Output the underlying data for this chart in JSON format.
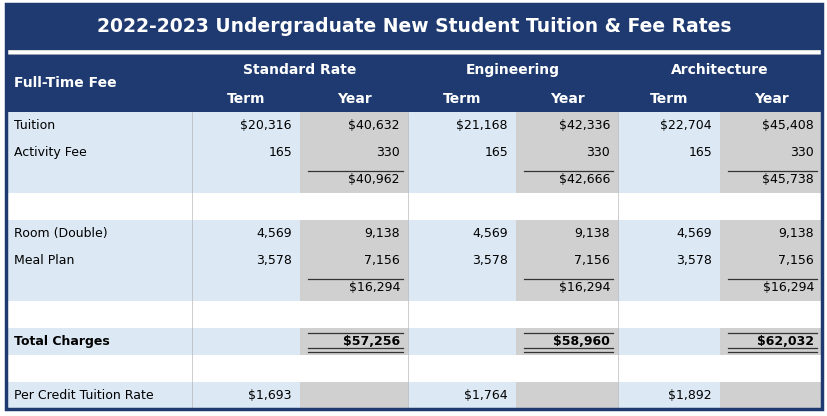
{
  "title": "2022-2023 Undergraduate New Student Tuition & Fee Rates",
  "title_bg": "#1e3a70",
  "title_color": "#ffffff",
  "header_bg": "#1e3a70",
  "header_color": "#ffffff",
  "light_blue": "#dce9f5",
  "gray_col": "#d0d0d0",
  "label_blue": "#dce9f5",
  "white_bg": "#ffffff",
  "outer_border": "#1e3a70",
  "rows": [
    {
      "label": "Tuition",
      "vals": [
        "$20,316",
        "$40,632",
        "$21,168",
        "$42,336",
        "$22,704",
        "$45,408"
      ],
      "bg": "data",
      "bold": false
    },
    {
      "label": "Activity Fee",
      "vals": [
        "165",
        "330",
        "165",
        "330",
        "165",
        "330"
      ],
      "bg": "data",
      "bold": false
    },
    {
      "label": "",
      "vals": [
        "",
        "$40,962",
        "",
        "$42,666",
        "",
        "$45,738"
      ],
      "bg": "data",
      "bold": false,
      "subtotal": [
        1,
        3,
        5
      ]
    },
    {
      "label": "",
      "vals": [
        "",
        "",
        "",
        "",
        "",
        ""
      ],
      "bg": "white",
      "bold": false
    },
    {
      "label": "Room (Double)",
      "vals": [
        "4,569",
        "9,138",
        "4,569",
        "9,138",
        "4,569",
        "9,138"
      ],
      "bg": "data",
      "bold": false
    },
    {
      "label": "Meal Plan",
      "vals": [
        "3,578",
        "7,156",
        "3,578",
        "7,156",
        "3,578",
        "7,156"
      ],
      "bg": "data",
      "bold": false
    },
    {
      "label": "",
      "vals": [
        "",
        "$16,294",
        "",
        "$16,294",
        "",
        "$16,294"
      ],
      "bg": "data",
      "bold": false,
      "subtotal": [
        1,
        3,
        5
      ]
    },
    {
      "label": "",
      "vals": [
        "",
        "",
        "",
        "",
        "",
        ""
      ],
      "bg": "white",
      "bold": false
    },
    {
      "label": "Total Charges",
      "vals": [
        "",
        "$57,256",
        "",
        "$58,960",
        "",
        "$62,032"
      ],
      "bg": "data",
      "bold": true,
      "total": [
        1,
        3,
        5
      ]
    },
    {
      "label": "",
      "vals": [
        "",
        "",
        "",
        "",
        "",
        ""
      ],
      "bg": "white",
      "bold": false
    },
    {
      "label": "Per Credit Tuition Rate",
      "vals": [
        "$1,693",
        "",
        "$1,764",
        "",
        "$1,892",
        ""
      ],
      "bg": "data",
      "bold": false
    }
  ]
}
